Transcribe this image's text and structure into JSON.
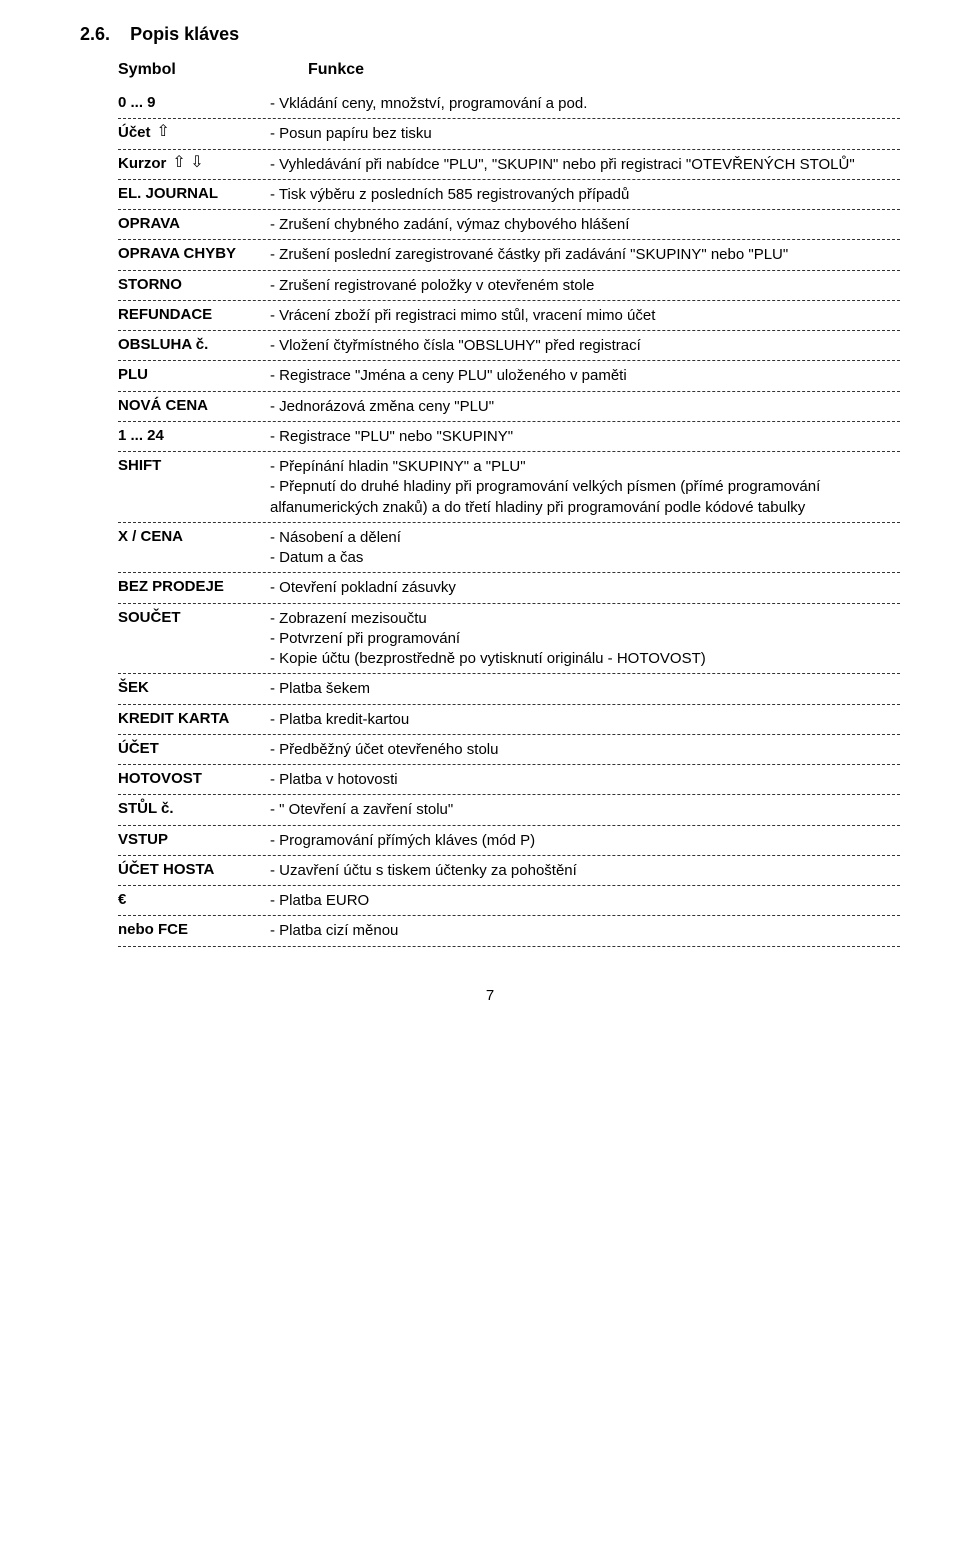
{
  "section_number": "2.6.",
  "section_title": "Popis kláves",
  "header": {
    "symbol": "Symbol",
    "funkce": "Funkce"
  },
  "rows": [
    {
      "symbol": "0 ... 9",
      "arrows": "",
      "lines": [
        "- Vkládání ceny, množství, programování a pod."
      ]
    },
    {
      "symbol": "Účet",
      "arrows": "up",
      "lines": [
        "- Posun papíru bez tisku"
      ]
    },
    {
      "symbol": "Kurzor",
      "arrows": "updown",
      "lines": [
        "- Vyhledávání při nabídce \"PLU\", \"SKUPIN\"  nebo při registraci \"OTEVŘENÝCH STOLŮ\""
      ]
    },
    {
      "symbol": "EL. JOURNAL",
      "arrows": "",
      "lines": [
        "- Tisk výběru z posledních 585 registrovaných případů"
      ]
    },
    {
      "symbol": "OPRAVA",
      "arrows": "",
      "lines": [
        "- Zrušení chybného zadání, výmaz chybového hlášení"
      ]
    },
    {
      "symbol": "OPRAVA CHYBY",
      "arrows": "",
      "lines": [
        "- Zrušení poslední zaregistrované částky při zadávání \"SKUPINY\" nebo \"PLU\""
      ]
    },
    {
      "symbol": "STORNO",
      "arrows": "",
      "lines": [
        "- Zrušení registrované položky v otevřeném stole"
      ]
    },
    {
      "symbol": "REFUNDACE",
      "arrows": "",
      "lines": [
        "- Vrácení zboží při registraci mimo stůl, vracení mimo účet"
      ]
    },
    {
      "symbol": "OBSLUHA č.",
      "arrows": "",
      "lines": [
        "- Vložení čtyřmístného čísla \"OBSLUHY\" před registrací"
      ]
    },
    {
      "symbol": "PLU",
      "arrows": "",
      "lines": [
        "- Registrace \"Jména a ceny PLU\"  uloženého v paměti"
      ]
    },
    {
      "symbol": "NOVÁ CENA",
      "arrows": "",
      "lines": [
        "- Jednorázová změna ceny  \"PLU\""
      ]
    },
    {
      "symbol": "1 ... 24",
      "arrows": "",
      "lines": [
        "- Registrace  \"PLU\"  nebo  \"SKUPINY\""
      ]
    },
    {
      "symbol": "SHIFT",
      "arrows": "",
      "lines": [
        "- Přepínání hladin  \"SKUPINY\"  a  \"PLU\"",
        "- Přepnutí do druhé hladiny při programování velkých písmen (přímé programování alfanumerických znaků)  a do třetí hladiny při programování podle kódové tabulky"
      ]
    },
    {
      "symbol": "X / CENA",
      "arrows": "",
      "lines": [
        "- Násobení a dělení",
        "- Datum a čas"
      ]
    },
    {
      "symbol": "BEZ PRODEJE",
      "arrows": "",
      "lines": [
        "- Otevření pokladní zásuvky"
      ]
    },
    {
      "symbol": "SOUČET",
      "arrows": "",
      "lines": [
        "- Zobrazení mezisoučtu",
        "- Potvrzení při programování",
        "- Kopie účtu (bezprostředně po vytisknutí originálu - HOTOVOST)"
      ]
    },
    {
      "symbol": "ŠEK",
      "arrows": "",
      "lines": [
        "- Platba šekem"
      ]
    },
    {
      "symbol": "KREDIT KARTA",
      "arrows": "",
      "lines": [
        "- Platba  kredit-kartou"
      ]
    },
    {
      "symbol": "ÚČET",
      "arrows": "",
      "lines": [
        "- Předběžný účet otevřeného stolu"
      ]
    },
    {
      "symbol": "HOTOVOST",
      "arrows": "",
      "lines": [
        "- Platba v hotovosti"
      ]
    },
    {
      "symbol": "STŮL č.",
      "arrows": "",
      "lines": [
        "- \" Otevření a zavření stolu\""
      ]
    },
    {
      "symbol": "VSTUP",
      "arrows": "",
      "lines": [
        "- Programování přímých kláves (mód P)"
      ]
    },
    {
      "symbol": "ÚČET HOSTA",
      "arrows": "",
      "lines": [
        "- Uzavření účtu s tiskem účtenky za pohoštění"
      ]
    },
    {
      "symbol": "€",
      "arrows": "",
      "lines": [
        "- Platba EURO"
      ]
    },
    {
      "symbol": "nebo FCE",
      "arrows": "",
      "lines": [
        "- Platba cizí měnou"
      ]
    }
  ],
  "page_number": "7",
  "glyphs": {
    "up": "⇧",
    "updown": "⇧ ⇩"
  }
}
